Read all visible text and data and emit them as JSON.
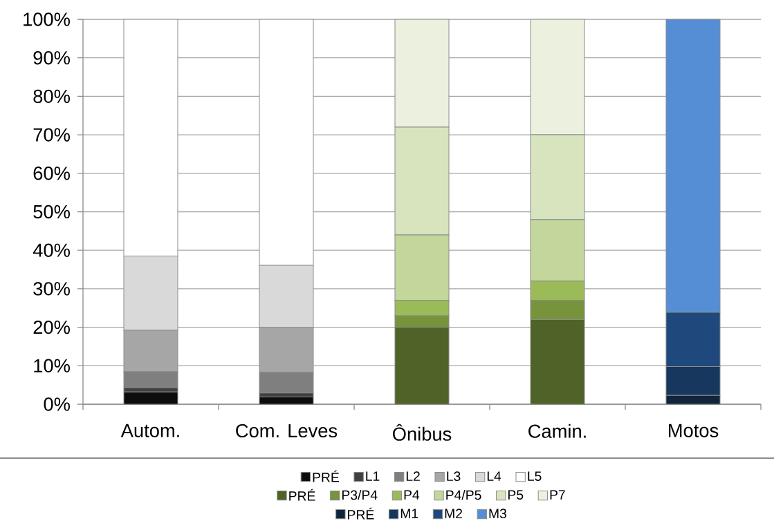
{
  "chart_data": {
    "type": "bar",
    "stacked": true,
    "categories": [
      "Autom.",
      "Com. Leves",
      "Ônibus",
      "Camin.",
      "Motos"
    ],
    "series": [
      {
        "name": "PRÉ",
        "color": "#0d0d0d",
        "values": [
          3.2,
          1.9,
          null,
          null,
          null
        ]
      },
      {
        "name": "L1",
        "color": "#404040",
        "values": [
          1.1,
          1.0,
          null,
          null,
          null
        ]
      },
      {
        "name": "L2",
        "color": "#7f7f7f",
        "values": [
          4.2,
          5.4,
          null,
          null,
          null
        ]
      },
      {
        "name": "L3",
        "color": "#a6a6a6",
        "values": [
          10.7,
          11.7,
          null,
          null,
          null
        ]
      },
      {
        "name": "L4",
        "color": "#d9d9d9",
        "values": [
          19.3,
          16.1,
          null,
          null,
          null
        ]
      },
      {
        "name": "L5",
        "color": "#ffffff",
        "values": [
          61.5,
          63.9,
          null,
          null,
          null
        ]
      },
      {
        "name": "PRÉ",
        "color": "#4f6228",
        "values": [
          null,
          null,
          20,
          22,
          null
        ]
      },
      {
        "name": "P3/P4",
        "color": "#77933c",
        "values": [
          null,
          null,
          3,
          5,
          null
        ]
      },
      {
        "name": "P4",
        "color": "#9bbb59",
        "values": [
          null,
          null,
          4,
          5,
          null
        ]
      },
      {
        "name": "P4/P5",
        "color": "#c3d69b",
        "values": [
          null,
          null,
          17,
          16,
          null
        ]
      },
      {
        "name": "P5",
        "color": "#d7e4bd",
        "values": [
          null,
          null,
          28,
          22,
          null
        ]
      },
      {
        "name": "P7",
        "color": "#ebf1de",
        "values": [
          null,
          null,
          28,
          30,
          null
        ]
      },
      {
        "name": "PRÉ",
        "color": "#10243e",
        "values": [
          null,
          null,
          null,
          null,
          2.3
        ]
      },
      {
        "name": "M1",
        "color": "#17375e",
        "values": [
          null,
          null,
          null,
          null,
          7.5
        ]
      },
      {
        "name": "M2",
        "color": "#1f497d",
        "values": [
          null,
          null,
          null,
          null,
          14.1
        ]
      },
      {
        "name": "M3",
        "color": "#558ed5",
        "values": [
          null,
          null,
          null,
          null,
          76.1
        ]
      }
    ],
    "ylim": [
      0,
      100
    ],
    "yticks": [
      {
        "value": 0,
        "label": "0%"
      },
      {
        "value": 10,
        "label": "10%"
      },
      {
        "value": 20,
        "label": "20%"
      },
      {
        "value": 30,
        "label": "30%"
      },
      {
        "value": 40,
        "label": "40%"
      },
      {
        "value": 50,
        "label": "50%"
      },
      {
        "value": 60,
        "label": "60%"
      },
      {
        "value": 70,
        "label": "70%"
      },
      {
        "value": 80,
        "label": "80%"
      },
      {
        "value": 90,
        "label": "90%"
      },
      {
        "value": 100,
        "label": "100%"
      }
    ],
    "grid": "y",
    "legend": "bottom"
  }
}
